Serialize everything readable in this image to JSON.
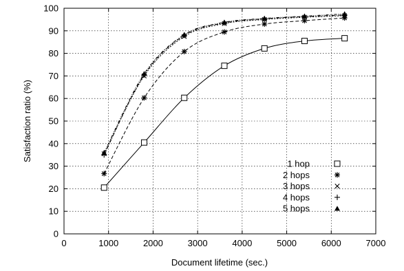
{
  "chart_data": {
    "type": "line",
    "xlabel": "Document lifetime (sec.)",
    "ylabel": "Satisfaction ratio (%)",
    "xlim": [
      0,
      7000
    ],
    "ylim": [
      0,
      100
    ],
    "xticks": [
      0,
      1000,
      2000,
      3000,
      4000,
      5000,
      6000,
      7000
    ],
    "yticks": [
      0,
      10,
      20,
      30,
      40,
      50,
      60,
      70,
      80,
      90,
      100
    ],
    "grid": true,
    "legend_position": "bottom-right",
    "x": [
      900,
      1800,
      2700,
      3600,
      4500,
      5400,
      6300
    ],
    "series": [
      {
        "name": "1 hop",
        "marker": "square",
        "line": "solid",
        "values": [
          20.5,
          40.5,
          60.3,
          74.5,
          82.2,
          85.5,
          86.7
        ]
      },
      {
        "name": "2 hops",
        "marker": "asterisk",
        "line": "dashed",
        "values": [
          26.7,
          60.3,
          80.8,
          89.5,
          93.0,
          94.5,
          95.7
        ]
      },
      {
        "name": "3 hops",
        "marker": "cross",
        "line": "dotted",
        "values": [
          35.5,
          70.0,
          87.5,
          93.2,
          95.0,
          96.0,
          96.7
        ]
      },
      {
        "name": "4 hops",
        "marker": "plus",
        "line": "dashdot",
        "values": [
          35.0,
          70.5,
          88.0,
          93.5,
          95.3,
          96.3,
          97.0
        ]
      },
      {
        "name": "5 hops",
        "marker": "triangle",
        "line": "dashdot2",
        "values": [
          36.0,
          71.0,
          88.3,
          93.8,
          95.5,
          96.5,
          97.5
        ]
      }
    ]
  }
}
